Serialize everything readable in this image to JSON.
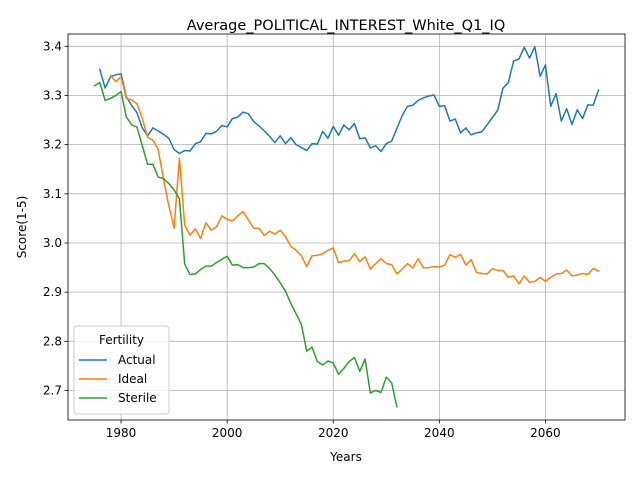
{
  "chart_data": {
    "type": "line",
    "title": "Average_POLITICAL_INTEREST_White_Q1_IQ",
    "xlabel": "Years",
    "ylabel": "Score(1-5)",
    "xlim": [
      1970,
      2075
    ],
    "ylim": [
      2.64,
      3.425
    ],
    "xticks": [
      1980,
      2000,
      2020,
      2040,
      2060
    ],
    "yticks": [
      2.7,
      2.8,
      2.9,
      3.0,
      3.1,
      3.2,
      3.3,
      3.4
    ],
    "grid": true,
    "legend": {
      "title": "Fertility",
      "placement": "lower-left"
    },
    "series": [
      {
        "name": "Actual",
        "color": "#1f77b4",
        "x": [
          1976,
          1977,
          1978,
          1979,
          1980,
          1981,
          1982,
          1983,
          1984,
          1985,
          1986,
          1987,
          1988,
          1989,
          1990,
          1991,
          1992,
          1993,
          1994,
          1995,
          1996,
          1997,
          1998,
          1999,
          2000,
          2001,
          2002,
          2003,
          2004,
          2005,
          2006,
          2007,
          2008,
          2009,
          2010,
          2011,
          2012,
          2013,
          2014,
          2015,
          2016,
          2017,
          2018,
          2019,
          2020,
          2021,
          2022,
          2023,
          2024,
          2025,
          2026,
          2027,
          2028,
          2029,
          2030,
          2031,
          2032,
          2033,
          2034,
          2035,
          2036,
          2037,
          2038,
          2039,
          2040,
          2041,
          2042,
          2043,
          2044,
          2045,
          2046,
          2047,
          2048,
          2049,
          2050,
          2051,
          2052,
          2053,
          2054,
          2055,
          2056,
          2057,
          2058,
          2059,
          2060,
          2061,
          2062,
          2063,
          2064,
          2065,
          2066,
          2067,
          2068,
          2069,
          2070
        ],
        "values": [
          3.353,
          3.315,
          3.338,
          3.342,
          3.344,
          3.297,
          3.28,
          3.265,
          3.234,
          3.218,
          3.234,
          3.228,
          3.221,
          3.213,
          3.19,
          3.182,
          3.188,
          3.187,
          3.202,
          3.206,
          3.223,
          3.222,
          3.227,
          3.239,
          3.236,
          3.253,
          3.256,
          3.266,
          3.263,
          3.247,
          3.238,
          3.228,
          3.217,
          3.204,
          3.218,
          3.202,
          3.214,
          3.2,
          3.194,
          3.188,
          3.202,
          3.201,
          3.227,
          3.213,
          3.237,
          3.219,
          3.24,
          3.23,
          3.243,
          3.212,
          3.214,
          3.193,
          3.198,
          3.186,
          3.202,
          3.207,
          3.233,
          3.259,
          3.278,
          3.28,
          3.29,
          3.295,
          3.299,
          3.301,
          3.278,
          3.279,
          3.248,
          3.252,
          3.224,
          3.234,
          3.22,
          3.224,
          3.226,
          3.24,
          3.255,
          3.27,
          3.315,
          3.326,
          3.37,
          3.374,
          3.398,
          3.376,
          3.399,
          3.339,
          3.362,
          3.278,
          3.304,
          3.248,
          3.273,
          3.241,
          3.271,
          3.253,
          3.281,
          3.28,
          3.311
        ]
      },
      {
        "name": "Ideal",
        "color": "#ff7f0e",
        "x": [
          1978,
          1979,
          1980,
          1981,
          1982,
          1983,
          1984,
          1985,
          1986,
          1987,
          1988,
          1989,
          1990,
          1991,
          1992,
          1993,
          1994,
          1995,
          1996,
          1997,
          1998,
          1999,
          2000,
          2001,
          2002,
          2003,
          2004,
          2005,
          2006,
          2007,
          2008,
          2009,
          2010,
          2011,
          2012,
          2013,
          2014,
          2015,
          2016,
          2017,
          2018,
          2019,
          2020,
          2021,
          2022,
          2023,
          2024,
          2025,
          2026,
          2027,
          2028,
          2029,
          2030,
          2031,
          2032,
          2033,
          2034,
          2035,
          2036,
          2037,
          2038,
          2039,
          2040,
          2041,
          2042,
          2043,
          2044,
          2045,
          2046,
          2047,
          2048,
          2049,
          2050,
          2051,
          2052,
          2053,
          2054,
          2055,
          2056,
          2057,
          2058,
          2059,
          2060,
          2061,
          2062,
          2063,
          2064,
          2065,
          2066,
          2067,
          2068,
          2069,
          2070
        ],
        "values": [
          3.341,
          3.328,
          3.338,
          3.294,
          3.291,
          3.283,
          3.254,
          3.215,
          3.209,
          3.19,
          3.13,
          3.076,
          3.03,
          3.172,
          3.036,
          3.016,
          3.029,
          3.009,
          3.041,
          3.026,
          3.033,
          3.055,
          3.048,
          3.045,
          3.055,
          3.064,
          3.047,
          3.03,
          3.03,
          3.015,
          3.024,
          3.018,
          3.026,
          3.013,
          2.993,
          2.985,
          2.974,
          2.952,
          2.974,
          2.975,
          2.978,
          2.985,
          2.99,
          2.96,
          2.963,
          2.964,
          2.978,
          2.962,
          2.972,
          2.947,
          2.958,
          2.968,
          2.958,
          2.956,
          2.937,
          2.947,
          2.958,
          2.949,
          2.968,
          2.949,
          2.95,
          2.952,
          2.951,
          2.955,
          2.976,
          2.971,
          2.977,
          2.955,
          2.966,
          2.94,
          2.938,
          2.937,
          2.948,
          2.944,
          2.944,
          2.93,
          2.933,
          2.917,
          2.933,
          2.92,
          2.922,
          2.93,
          2.922,
          2.93,
          2.937,
          2.938,
          2.945,
          2.933,
          2.935,
          2.938,
          2.936,
          2.948,
          2.943
        ]
      },
      {
        "name": "Sterile",
        "color": "#2ca02c",
        "x": [
          1975,
          1976,
          1977,
          1978,
          1979,
          1980,
          1981,
          1982,
          1983,
          1984,
          1985,
          1986,
          1987,
          1988,
          1989,
          1990,
          1991,
          1992,
          1993,
          1994,
          1995,
          1996,
          1997,
          1998,
          1999,
          2000,
          2001,
          2002,
          2003,
          2004,
          2005,
          2006,
          2007,
          2008,
          2009,
          2010,
          2011,
          2012,
          2013,
          2014,
          2015,
          2016,
          2017,
          2018,
          2019,
          2020,
          2021,
          2022,
          2023,
          2024,
          2025,
          2026,
          2027,
          2028,
          2029,
          2030,
          2031,
          2032
        ],
        "values": [
          3.32,
          3.326,
          3.29,
          3.294,
          3.3,
          3.308,
          3.256,
          3.24,
          3.236,
          3.198,
          3.16,
          3.16,
          3.134,
          3.131,
          3.121,
          3.108,
          3.09,
          2.957,
          2.936,
          2.937,
          2.946,
          2.953,
          2.953,
          2.96,
          2.967,
          2.973,
          2.955,
          2.956,
          2.95,
          2.95,
          2.951,
          2.958,
          2.958,
          2.948,
          2.935,
          2.919,
          2.902,
          2.877,
          2.856,
          2.834,
          2.78,
          2.788,
          2.759,
          2.752,
          2.76,
          2.756,
          2.733,
          2.745,
          2.759,
          2.767,
          2.739,
          2.764,
          2.695,
          2.7,
          2.696,
          2.727,
          2.716,
          2.667
        ]
      }
    ]
  }
}
